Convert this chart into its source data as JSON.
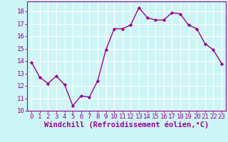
{
  "x": [
    0,
    1,
    2,
    3,
    4,
    5,
    6,
    7,
    8,
    9,
    10,
    11,
    12,
    13,
    14,
    15,
    16,
    17,
    18,
    19,
    20,
    21,
    22,
    23
  ],
  "y": [
    13.9,
    12.7,
    12.2,
    12.8,
    12.1,
    10.4,
    11.2,
    11.1,
    12.4,
    14.9,
    16.6,
    16.6,
    16.9,
    18.3,
    17.5,
    17.3,
    17.3,
    17.9,
    17.8,
    16.9,
    16.6,
    15.4,
    14.9,
    13.8
  ],
  "line_color": "#990099",
  "marker": "D",
  "markersize": 2.2,
  "bg_color": "#cef5f5",
  "grid_color": "#ffffff",
  "xlabel": "Windchill (Refroidissement éolien,°C)",
  "xlabel_color": "#990099",
  "tick_color": "#990099",
  "ylim": [
    10,
    18.8
  ],
  "xlim": [
    -0.5,
    23.5
  ],
  "yticks": [
    10,
    11,
    12,
    13,
    14,
    15,
    16,
    17,
    18
  ],
  "xticks": [
    0,
    1,
    2,
    3,
    4,
    5,
    6,
    7,
    8,
    9,
    10,
    11,
    12,
    13,
    14,
    15,
    16,
    17,
    18,
    19,
    20,
    21,
    22,
    23
  ],
  "xtick_labels": [
    "0",
    "1",
    "2",
    "3",
    "4",
    "5",
    "6",
    "7",
    "8",
    "9",
    "10",
    "11",
    "12",
    "13",
    "14",
    "15",
    "16",
    "17",
    "18",
    "19",
    "20",
    "21",
    "22",
    "23"
  ],
  "ytick_labels": [
    "10",
    "11",
    "12",
    "13",
    "14",
    "15",
    "16",
    "17",
    "18"
  ],
  "linewidth": 1.0,
  "font_size": 6.5,
  "xlabel_font_size": 7.5
}
